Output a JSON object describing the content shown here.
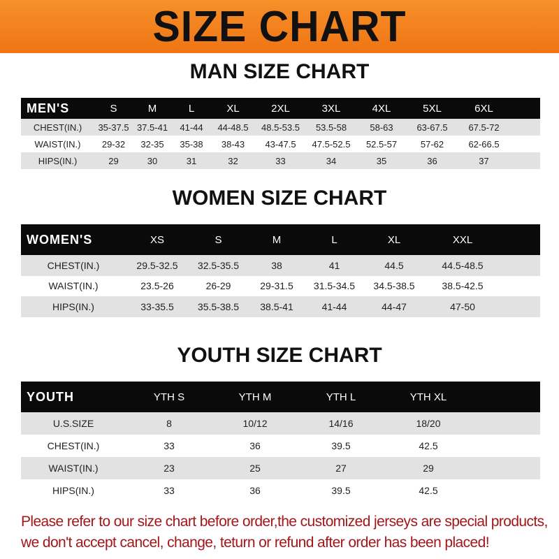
{
  "title": "SIZE CHART",
  "men": {
    "title": "MAN SIZE CHART",
    "label": "MEN'S",
    "sizes": [
      "S",
      "M",
      "L",
      "XL",
      "2XL",
      "3XL",
      "4XL",
      "5XL",
      "6XL"
    ],
    "rows": [
      {
        "label": "CHEST(IN.)",
        "values": [
          "35-37.5",
          "37.5-41",
          "41-44",
          "44-48.5",
          "48.5-53.5",
          "53.5-58",
          "58-63",
          "63-67.5",
          "67.5-72"
        ]
      },
      {
        "label": "WAIST(IN.)",
        "values": [
          "29-32",
          "32-35",
          "35-38",
          "38-43",
          "43-47.5",
          "47.5-52.5",
          "52.5-57",
          "57-62",
          "62-66.5"
        ]
      },
      {
        "label": "HIPS(IN.)",
        "values": [
          "29",
          "30",
          "31",
          "32",
          "33",
          "34",
          "35",
          "36",
          "37"
        ]
      }
    ]
  },
  "women": {
    "title": "WOMEN SIZE CHART",
    "label": "WOMEN'S",
    "sizes": [
      "XS",
      "S",
      "M",
      "L",
      "XL",
      "XXL"
    ],
    "rows": [
      {
        "label": "CHEST(IN.)",
        "values": [
          "29.5-32.5",
          "32.5-35.5",
          "38",
          "41",
          "44.5",
          "44.5-48.5"
        ]
      },
      {
        "label": "WAIST(IN.)",
        "values": [
          "23.5-26",
          "26-29",
          "29-31.5",
          "31.5-34.5",
          "34.5-38.5",
          "38.5-42.5"
        ]
      },
      {
        "label": "HIPS(IN.)",
        "values": [
          "33-35.5",
          "35.5-38.5",
          "38.5-41",
          "41-44",
          "44-47",
          "47-50"
        ]
      }
    ]
  },
  "youth": {
    "title": "YOUTH SIZE CHART",
    "label": "YOUTH",
    "sizes": [
      "YTH S",
      "YTH M",
      "YTH L",
      "YTH XL"
    ],
    "rows": [
      {
        "label": "U.S.SIZE",
        "values": [
          "8",
          "10/12",
          "14/16",
          "18/20"
        ]
      },
      {
        "label": "CHEST(IN.)",
        "values": [
          "33",
          "36",
          "39.5",
          "42.5"
        ]
      },
      {
        "label": "WAIST(IN.)",
        "values": [
          "23",
          "25",
          "27",
          "29"
        ]
      },
      {
        "label": "HIPS(IN.)",
        "values": [
          "33",
          "36",
          "39.5",
          "42.5"
        ]
      }
    ]
  },
  "note": [
    "Please refer to our size chart before order,the customized jerseys are special products,",
    "we don't accept cancel, change, teturn or refund after order has been placed!"
  ],
  "colors": {
    "banner": "#ef7414",
    "header_row": "#0a0a0a",
    "stripe": "#e2e2e2",
    "note": "#a3161a"
  }
}
